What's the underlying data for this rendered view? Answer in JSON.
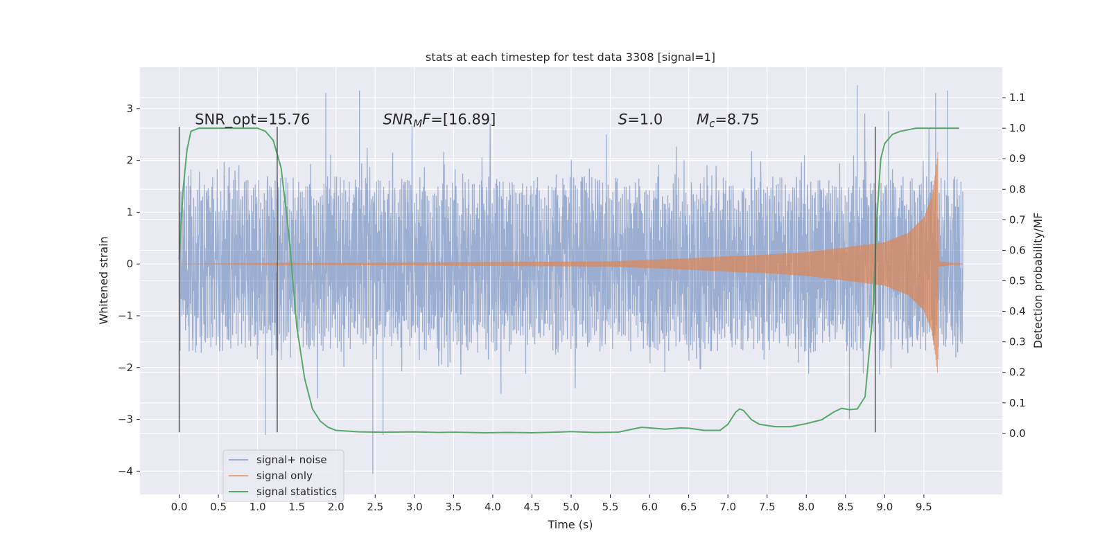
{
  "chart_data": {
    "type": "line",
    "title": "stats at each timestep for test data 3308 [signal=1]",
    "xlabel": "Time (s)",
    "ylabel": "Whitened strain",
    "ylabel_right": "Detection probability/MF",
    "xlim": [
      -0.5,
      10.5
    ],
    "ylim": [
      -4.45,
      3.8
    ],
    "ylim_right": [
      -0.2,
      1.2
    ],
    "x_ticks": [
      0.0,
      0.5,
      1.0,
      1.5,
      2.0,
      2.5,
      3.0,
      3.5,
      4.0,
      4.5,
      5.0,
      5.5,
      6.0,
      6.5,
      7.0,
      7.5,
      8.0,
      8.5,
      9.0,
      9.5
    ],
    "x_tick_labels": [
      "0.0",
      "0.5",
      "1.0",
      "1.5",
      "2.0",
      "2.5",
      "3.0",
      "3.5",
      "4.0",
      "4.5",
      "5.0",
      "5.5",
      "6.0",
      "6.5",
      "7.0",
      "7.5",
      "8.0",
      "8.5",
      "9.0",
      "9.5"
    ],
    "y_ticks": [
      -4,
      -3,
      -2,
      -1,
      0,
      1,
      2,
      3
    ],
    "y_tick_labels": [
      "−4",
      "−3",
      "−2",
      "−1",
      "0",
      "1",
      "2",
      "3"
    ],
    "y_right_ticks": [
      0.0,
      0.1,
      0.2,
      0.3,
      0.4,
      0.5,
      0.6,
      0.7,
      0.8,
      0.9,
      1.0,
      1.1
    ],
    "y_right_tick_labels": [
      "0.0",
      "0.1",
      "0.2",
      "0.3",
      "0.4",
      "0.5",
      "0.6",
      "0.7",
      "0.8",
      "0.9",
      "1.0",
      "1.1"
    ],
    "grid": true,
    "legend_position": "lower-left",
    "annotations": [
      {
        "parts": [
          {
            "t": "SNR_opt=15.76",
            "s": "normal"
          }
        ],
        "x": 0.2
      },
      {
        "parts": [
          {
            "t": "SNR",
            "s": "italic"
          },
          {
            "t": "M",
            "s": "sub"
          },
          {
            "t": "F",
            "s": "italic"
          },
          {
            "t": "=[16.89]",
            "s": "normal"
          }
        ],
        "x": 2.6
      },
      {
        "parts": [
          {
            "t": "S",
            "s": "italic"
          },
          {
            "t": "=1.0",
            "s": "normal"
          }
        ],
        "x": 5.6
      },
      {
        "parts": [
          {
            "t": "M",
            "s": "italic"
          },
          {
            "t": "c",
            "s": "sub"
          },
          {
            "t": "=8.75",
            "s": "normal"
          }
        ],
        "x": 6.6
      }
    ],
    "annotation_y": 2.7,
    "vertical_lines_x": [
      0.0,
      1.25,
      8.88
    ],
    "vertical_lines_range": [
      -3.25,
      2.65
    ],
    "series": [
      {
        "name": "signal+ noise",
        "color": "#4c72b0",
        "opacity": 0.5,
        "duration": 10.0,
        "typical_amplitude": 1.45,
        "peaks": [
          {
            "x": 1.1,
            "y": -3.3
          },
          {
            "x": 1.87,
            "y": 3.3
          },
          {
            "x": 2.3,
            "y": 3.35
          },
          {
            "x": 2.47,
            "y": -4.05
          },
          {
            "x": 2.6,
            "y": -3.3
          },
          {
            "x": 8.65,
            "y": 3.45
          },
          {
            "x": 9.05,
            "y": 2.95
          },
          {
            "x": 9.65,
            "y": 3.3
          },
          {
            "x": 9.8,
            "y": 3.35
          },
          {
            "x": 8.55,
            "y": -3.0
          }
        ]
      },
      {
        "name": "signal only",
        "color": "#dd8452",
        "opacity": 0.7,
        "envelope": [
          [
            0.0,
            0.0
          ],
          [
            5.5,
            0.05
          ],
          [
            6.0,
            0.08
          ],
          [
            6.5,
            0.11
          ],
          [
            7.0,
            0.15
          ],
          [
            7.5,
            0.18
          ],
          [
            8.0,
            0.23
          ],
          [
            8.5,
            0.32
          ],
          [
            9.0,
            0.42
          ],
          [
            9.3,
            0.6
          ],
          [
            9.5,
            0.9
          ],
          [
            9.6,
            1.3
          ],
          [
            9.65,
            1.8
          ],
          [
            9.68,
            2.2
          ],
          [
            9.69,
            0.05
          ],
          [
            10.0,
            0.0
          ]
        ]
      },
      {
        "name": "signal statistics",
        "color": "#55a868",
        "axis": "right",
        "points": [
          [
            0.0,
            0.57
          ],
          [
            0.05,
            0.8
          ],
          [
            0.1,
            0.93
          ],
          [
            0.15,
            0.99
          ],
          [
            0.25,
            1.0
          ],
          [
            0.5,
            1.0
          ],
          [
            0.8,
            1.0
          ],
          [
            1.0,
            1.0
          ],
          [
            1.1,
            0.99
          ],
          [
            1.2,
            0.96
          ],
          [
            1.3,
            0.87
          ],
          [
            1.4,
            0.65
          ],
          [
            1.5,
            0.35
          ],
          [
            1.6,
            0.18
          ],
          [
            1.7,
            0.08
          ],
          [
            1.8,
            0.04
          ],
          [
            1.9,
            0.02
          ],
          [
            2.0,
            0.01
          ],
          [
            2.3,
            0.005
          ],
          [
            2.6,
            0.004
          ],
          [
            3.0,
            0.005
          ],
          [
            3.3,
            0.003
          ],
          [
            3.5,
            0.004
          ],
          [
            3.9,
            0.002
          ],
          [
            4.2,
            0.003
          ],
          [
            4.5,
            0.002
          ],
          [
            4.8,
            0.004
          ],
          [
            5.0,
            0.006
          ],
          [
            5.3,
            0.003
          ],
          [
            5.6,
            0.004
          ],
          [
            5.8,
            0.015
          ],
          [
            5.9,
            0.02
          ],
          [
            6.0,
            0.018
          ],
          [
            6.2,
            0.014
          ],
          [
            6.4,
            0.018
          ],
          [
            6.5,
            0.017
          ],
          [
            6.7,
            0.01
          ],
          [
            6.9,
            0.01
          ],
          [
            7.0,
            0.03
          ],
          [
            7.1,
            0.07
          ],
          [
            7.15,
            0.08
          ],
          [
            7.2,
            0.075
          ],
          [
            7.3,
            0.045
          ],
          [
            7.4,
            0.03
          ],
          [
            7.6,
            0.022
          ],
          [
            7.8,
            0.022
          ],
          [
            8.0,
            0.032
          ],
          [
            8.2,
            0.045
          ],
          [
            8.35,
            0.07
          ],
          [
            8.45,
            0.082
          ],
          [
            8.55,
            0.078
          ],
          [
            8.65,
            0.08
          ],
          [
            8.75,
            0.12
          ],
          [
            8.85,
            0.4
          ],
          [
            8.9,
            0.7
          ],
          [
            8.95,
            0.9
          ],
          [
            9.0,
            0.95
          ],
          [
            9.1,
            0.98
          ],
          [
            9.2,
            0.99
          ],
          [
            9.4,
            1.0
          ],
          [
            9.6,
            1.0
          ],
          [
            9.8,
            1.0
          ],
          [
            9.95,
            1.0
          ]
        ]
      }
    ]
  }
}
